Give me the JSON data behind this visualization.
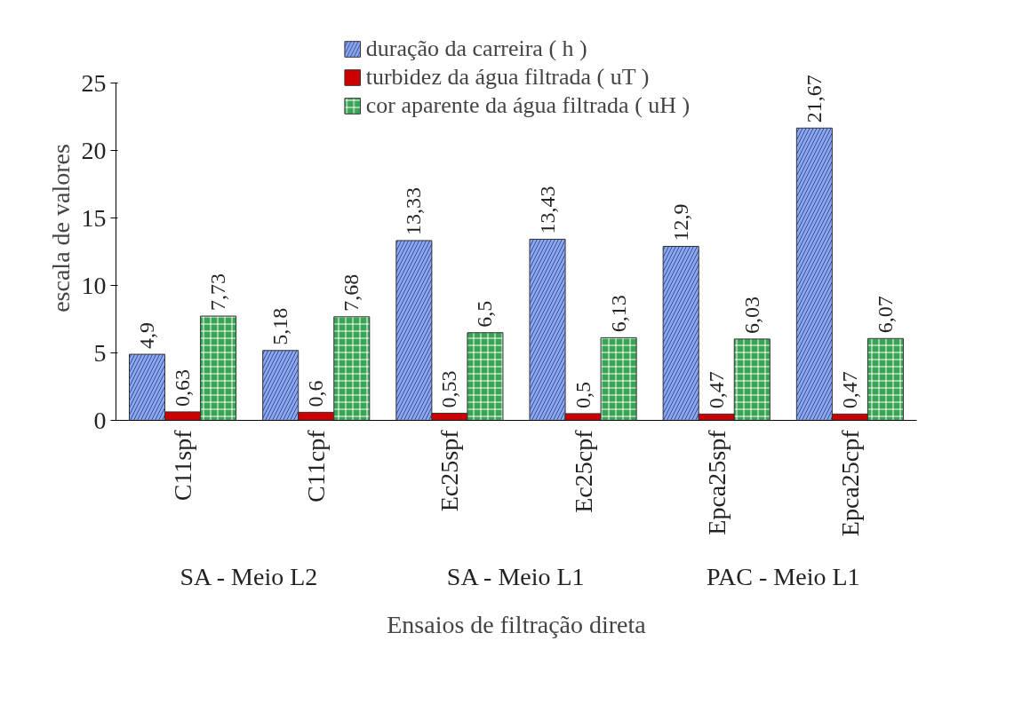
{
  "chart_data": {
    "type": "bar",
    "ylabel": "escala de valores",
    "xlabel": "Ensaios de filtração direta",
    "categories": [
      "C11spf",
      "C11cpf",
      "Ec25spf",
      "Ec25cpf",
      "Epca25spf",
      "Epca25cpf"
    ],
    "series": [
      {
        "name": "duração da carreira ( h )",
        "color": "#8fa8e8",
        "values": [
          4.9,
          5.18,
          13.33,
          13.43,
          12.9,
          21.67
        ]
      },
      {
        "name": "turbidez da água filtrada ( uT )",
        "color": "#cc0000",
        "values": [
          0.63,
          0.6,
          0.53,
          0.5,
          0.47,
          0.47
        ]
      },
      {
        "name": "cor aparente da água filtrada ( uH )",
        "color": "#3aa655",
        "values": [
          7.73,
          7.68,
          6.5,
          6.13,
          6.03,
          6.07
        ]
      }
    ],
    "value_labels": [
      [
        "4,9",
        "5,18",
        "13,33",
        "13,43",
        "12,9",
        "21,67"
      ],
      [
        "0,63",
        "0,6",
        "0,53",
        "0,5",
        "0,47",
        "0,47"
      ],
      [
        "7,73",
        "7,68",
        "6,5",
        "6,13",
        "6,03",
        "6,07"
      ]
    ],
    "ylim": [
      0,
      25
    ],
    "yticks": [
      0,
      5,
      10,
      15,
      20,
      25
    ],
    "grid": false,
    "legend": "top",
    "annotations": [
      "SA - Meio L2",
      "SA - Meio L1",
      "PAC - Meio L1"
    ]
  }
}
